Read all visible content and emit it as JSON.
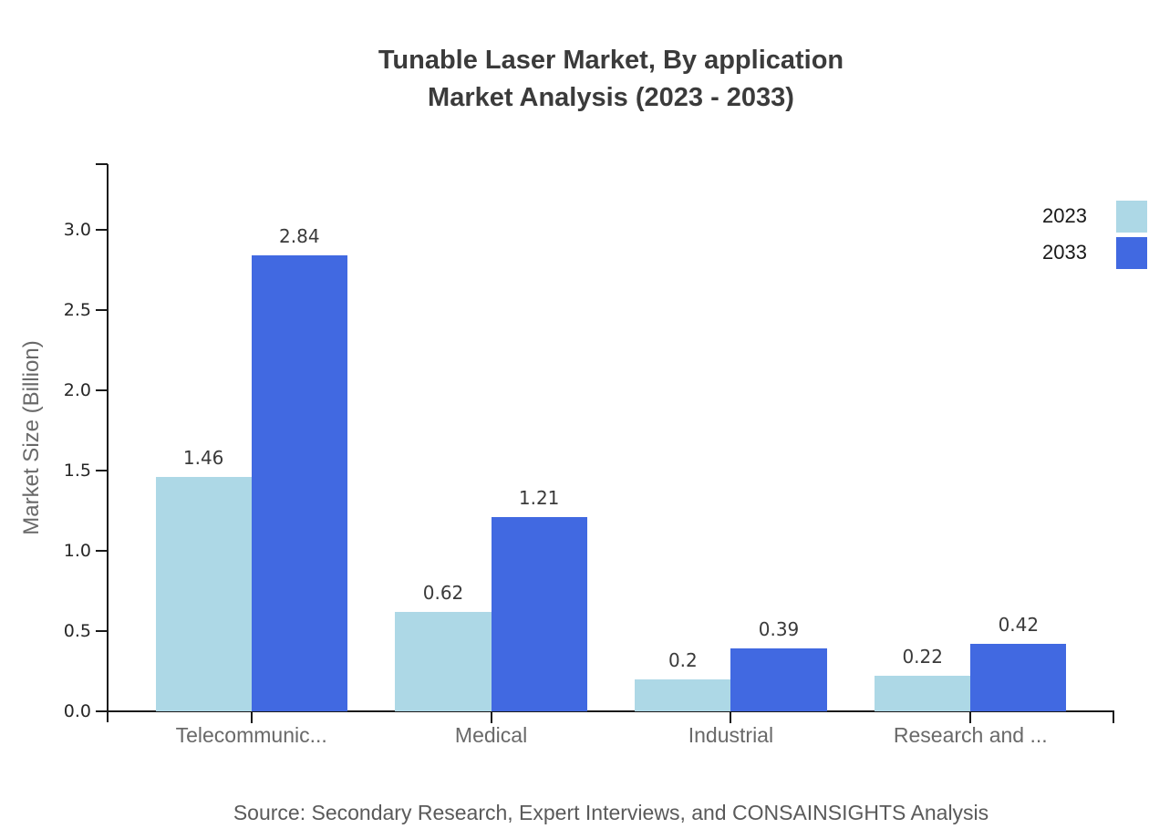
{
  "header": {
    "line1": "Tunable Laser Market, By application",
    "line2": "Market Analysis (2023 - 2033)"
  },
  "footer": {
    "source": "Source: Secondary Research, Expert Interviews, and CONSAINSIGHTS Analysis"
  },
  "chart_data": {
    "type": "bar",
    "title": "Tunable Laser Market, By application Market Analysis (2023 - 2033)",
    "categories": [
      "Telecommunic...",
      "Medical",
      "Industrial",
      "Research and ..."
    ],
    "series": [
      {
        "name": "2023",
        "color": "#ADD8E6",
        "values": [
          1.46,
          0.62,
          0.2,
          0.22
        ],
        "value_labels": [
          "1.46",
          "0.62",
          "0.2",
          "0.22"
        ]
      },
      {
        "name": "2033",
        "color": "#4169E1",
        "values": [
          2.84,
          1.21,
          0.39,
          0.42
        ],
        "value_labels": [
          "2.84",
          "1.21",
          "0.39",
          "0.42"
        ]
      }
    ],
    "xlabel": "",
    "ylabel": "Market Size (Billion)",
    "ylim": [
      0,
      3.41
    ],
    "yticks": [
      "0.0",
      "0.5",
      "1.0",
      "1.5",
      "2.0",
      "2.5",
      "3.0"
    ],
    "grid": false,
    "legend_position": "top-right",
    "bar_value_labels_shown": true
  },
  "legend": {
    "items": [
      {
        "label": "2023",
        "color": "#ADD8E6"
      },
      {
        "label": "2033",
        "color": "#4169E1"
      }
    ]
  },
  "colors": {
    "bar_2023": "#ADD8E6",
    "bar_2033": "#4169E1",
    "title_text": "#3B3B3B",
    "axis_line": "#1A1A1A",
    "tick_label": "#262626",
    "category_label": "#696969",
    "axis_title": "#696969",
    "value_label": "#3A3A3A",
    "source_text": "#5A5A5A",
    "background": "#FFFFFF"
  }
}
